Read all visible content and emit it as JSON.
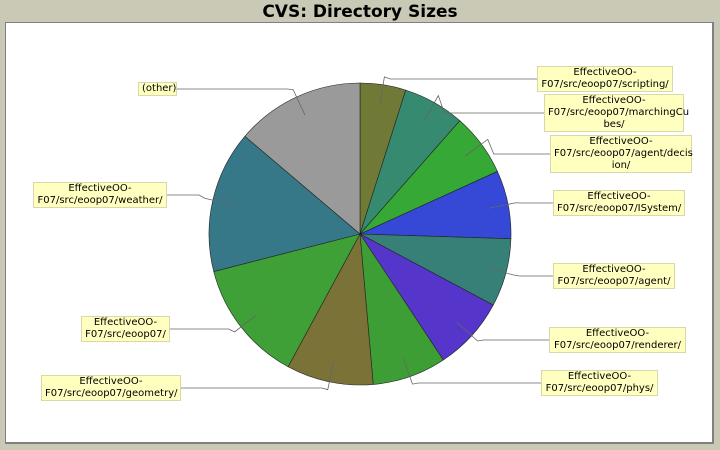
{
  "title": "CVS: Directory Sizes",
  "chart_data": {
    "type": "pie",
    "title": "CVS: Directory Sizes",
    "start_angle_deg": 0,
    "direction": "clockwise",
    "slices": [
      {
        "label": "EffectiveOO-F07/src/eoop07/scripting/",
        "value": 4.9,
        "color": "#707a36"
      },
      {
        "label": "EffectiveOO-F07/src/eoop07/marchingCubes/",
        "value": 6.6,
        "color": "#368a70"
      },
      {
        "label": "EffectiveOO-F07/src/eoop07/agent/decision/",
        "value": 6.7,
        "color": "#36a836"
      },
      {
        "label": "EffectiveOO-F07/src/eoop07/ISystem/",
        "value": 7.3,
        "color": "#3648d6"
      },
      {
        "label": "EffectiveOO-F07/src/eoop07/agent/",
        "value": 7.3,
        "color": "#368078"
      },
      {
        "label": "EffectiveOO-F07/src/eoop07/renderer/",
        "value": 7.9,
        "color": "#5636ca"
      },
      {
        "label": "EffectiveOO-F07/src/eoop07/phys/",
        "value": 7.9,
        "color": "#3e9e36"
      },
      {
        "label": "EffectiveOO-F07/src/eoop07/geometry/",
        "value": 9.3,
        "color": "#7a7236"
      },
      {
        "label": "EffectiveOO-F07/src/eoop07/",
        "value": 13.1,
        "color": "#3ea036"
      },
      {
        "label": "EffectiveOO-F07/src/eoop07/weather/",
        "value": 15.2,
        "color": "#367888"
      },
      {
        "label": "(other)",
        "value": 13.8,
        "color": "#9a9a9a"
      }
    ],
    "units": "percent (estimated)"
  },
  "labels": [
    {
      "line1": "EffectiveOO-",
      "line2": "F07/src/eoop07/scripting/",
      "line3": ""
    },
    {
      "line1": "EffectiveOO-",
      "line2": "F07/src/eoop07/marchingCu",
      "line3": "bes/"
    },
    {
      "line1": "EffectiveOO-",
      "line2": "F07/src/eoop07/agent/decis",
      "line3": "ion/"
    },
    {
      "line1": "EffectiveOO-",
      "line2": "F07/src/eoop07/ISystem/",
      "line3": ""
    },
    {
      "line1": "EffectiveOO-",
      "line2": "F07/src/eoop07/agent/",
      "line3": ""
    },
    {
      "line1": "EffectiveOO-",
      "line2": "F07/src/eoop07/renderer/",
      "line3": ""
    },
    {
      "line1": "EffectiveOO-",
      "line2": "F07/src/eoop07/phys/",
      "line3": ""
    },
    {
      "line1": "EffectiveOO-",
      "line2": "F07/src/eoop07/geometry/",
      "line3": ""
    },
    {
      "line1": "EffectiveOO-",
      "line2": "F07/src/eoop07/",
      "line3": ""
    },
    {
      "line1": "EffectiveOO-",
      "line2": "F07/src/eoop07/weather/",
      "line3": ""
    },
    {
      "line1": "(other)",
      "line2": "",
      "line3": ""
    }
  ]
}
